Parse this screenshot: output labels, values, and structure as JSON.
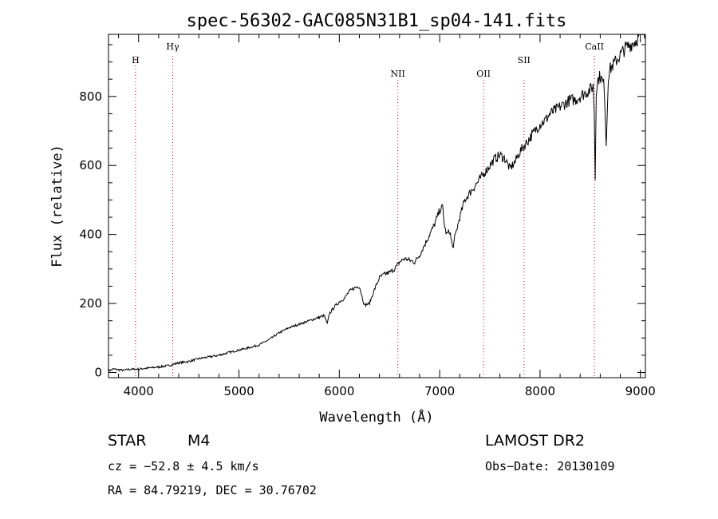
{
  "chart_data": {
    "type": "line",
    "title": "spec-56302-GAC085N31B1_sp04-141.fits",
    "xlabel": "Wavelength (Å)",
    "ylabel": "Flux (relative)",
    "xlim": [
      3700,
      9050
    ],
    "ylim": [
      -15,
      980
    ],
    "xticks": [
      4000,
      5000,
      6000,
      7000,
      8000,
      9000
    ],
    "yticks": [
      0,
      200,
      400,
      600,
      800
    ],
    "grid": false,
    "series": [
      {
        "x": [
          3700,
          3750,
          3800,
          3850,
          3900,
          4000,
          4100,
          4200,
          4300,
          4400,
          4500,
          4600,
          4700,
          4800,
          4900,
          5000,
          5100,
          5200,
          5300,
          5400,
          5500,
          5600,
          5700,
          5800,
          5850,
          5880,
          5900,
          5950,
          6000,
          6050,
          6100,
          6150,
          6200,
          6250,
          6300,
          6350,
          6400,
          6450,
          6500,
          6550,
          6600,
          6650,
          6700,
          6750,
          6800,
          6850,
          6900,
          6950,
          7000,
          7030,
          7050,
          7070,
          7100,
          7130,
          7150,
          7200,
          7250,
          7300,
          7350,
          7400,
          7450,
          7500,
          7550,
          7600,
          7650,
          7700,
          7750,
          7800,
          7850,
          7900,
          7950,
          8000,
          8050,
          8100,
          8150,
          8200,
          8250,
          8300,
          8350,
          8400,
          8450,
          8500,
          8530,
          8540,
          8550,
          8560,
          8580,
          8600,
          8640,
          8660,
          8680,
          8700,
          8750,
          8800,
          8850,
          8900,
          8950,
          9000,
          9050
        ],
        "y": [
          5,
          10,
          8,
          6,
          9,
          10,
          13,
          16,
          20,
          28,
          32,
          40,
          45,
          50,
          58,
          65,
          72,
          80,
          95,
          115,
          130,
          140,
          150,
          160,
          165,
          140,
          170,
          190,
          205,
          215,
          235,
          245,
          250,
          195,
          200,
          240,
          275,
          285,
          290,
          300,
          320,
          330,
          325,
          320,
          340,
          370,
          400,
          430,
          470,
          480,
          420,
          400,
          410,
          360,
          390,
          450,
          500,
          520,
          540,
          560,
          580,
          600,
          620,
          630,
          620,
          590,
          610,
          640,
          660,
          680,
          700,
          720,
          730,
          750,
          760,
          770,
          780,
          790,
          790,
          800,
          810,
          820,
          830,
          760,
          560,
          820,
          850,
          860,
          830,
          660,
          860,
          880,
          900,
          920,
          940,
          950,
          960,
          980,
          990
        ]
      }
    ],
    "lines": [
      {
        "label": "H",
        "wavelength": 3970
      },
      {
        "label": "Hγ",
        "wavelength": 4340
      },
      {
        "label": "NII",
        "wavelength": 6583
      },
      {
        "label": "OII",
        "wavelength": 7437
      },
      {
        "label": "SII",
        "wavelength": 7840
      },
      {
        "label": "CaII",
        "wavelength": 8542
      }
    ]
  },
  "info": {
    "object_type": "STAR",
    "subclass": "M4",
    "survey": "LAMOST DR2",
    "redshift": "cz = −52.8 ± 4.5 km/s",
    "obs_date": "Obs−Date: 20130109",
    "coords": "RA =  84.79219, DEC =  30.76702"
  }
}
